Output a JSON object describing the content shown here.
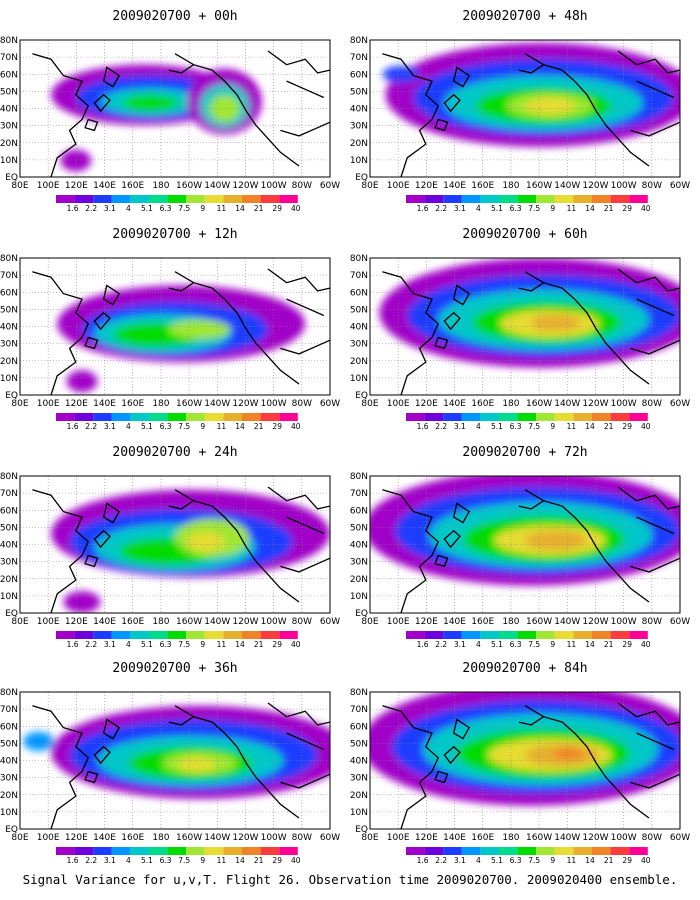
{
  "panels": [
    {
      "title": "2009020700 + 00h"
    },
    {
      "title": "2009020700 + 12h"
    },
    {
      "title": "2009020700 + 24h"
    },
    {
      "title": "2009020700 + 36h"
    },
    {
      "title": "2009020700 + 48h"
    },
    {
      "title": "2009020700 + 60h"
    },
    {
      "title": "2009020700 + 72h"
    },
    {
      "title": "2009020700 + 84h"
    }
  ],
  "lat_labels": [
    "80N",
    "70N",
    "60N",
    "50N",
    "40N",
    "30N",
    "20N",
    "10N",
    "EQ"
  ],
  "lon_labels": [
    "80E",
    "100E",
    "120E",
    "140E",
    "160E",
    "180",
    "160W",
    "140W",
    "120W",
    "100W",
    "80W",
    "60W"
  ],
  "colorbar": {
    "labels": [
      "1.6",
      "2.2",
      "3.1",
      "4",
      "5.1",
      "6.3",
      "7.5",
      "9",
      "11",
      "14",
      "21",
      "29",
      "40"
    ],
    "colors": [
      "#a000c8",
      "#6e00dc",
      "#1e3cff",
      "#0096ff",
      "#00c8c8",
      "#00dc8c",
      "#00dc00",
      "#a0e632",
      "#e6dc32",
      "#e6af2d",
      "#f08228",
      "#fa3c3c",
      "#ff0096"
    ]
  },
  "caption": "Signal Variance for u,v,T. Flight 26. Observation time 2009020700. 2009020400 ensemble."
}
